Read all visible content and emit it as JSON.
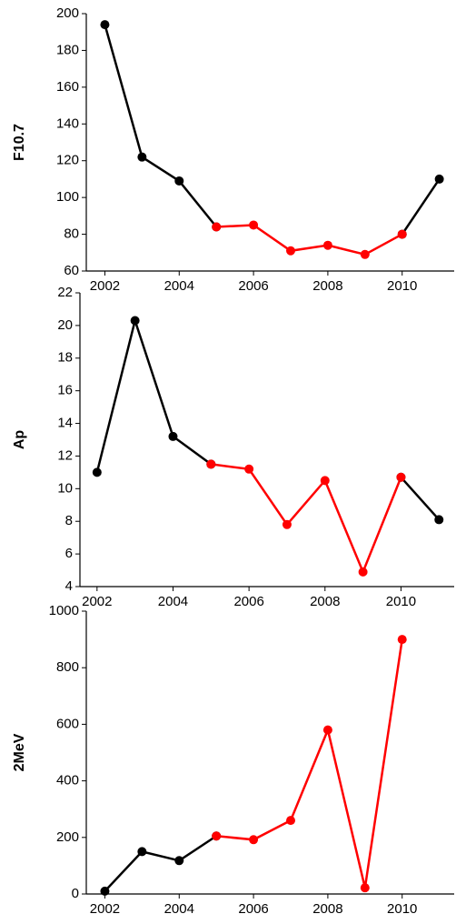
{
  "chart_data": [
    {
      "type": "line",
      "y_label": "F10.7",
      "x": [
        2002,
        2003,
        2004,
        2005,
        2006,
        2007,
        2008,
        2009,
        2010,
        2011
      ],
      "xlim": [
        2001.5,
        2011.4
      ],
      "xticks": [
        2002,
        2004,
        2006,
        2008,
        2010
      ],
      "ylim": [
        60,
        200
      ],
      "yticks": [
        60,
        80,
        100,
        120,
        140,
        160,
        180,
        200
      ],
      "series": [
        {
          "color": "#000000",
          "values": [
            194,
            122,
            109,
            84,
            null,
            null,
            null,
            null,
            80,
            110
          ]
        },
        {
          "color": "#ff0000",
          "values": [
            null,
            null,
            null,
            84,
            85,
            71,
            74,
            69,
            80,
            null
          ]
        }
      ]
    },
    {
      "type": "line",
      "y_label": "Ap",
      "x": [
        2002,
        2003,
        2004,
        2005,
        2006,
        2007,
        2008,
        2009,
        2010,
        2011
      ],
      "xlim": [
        2001.55,
        2011.4
      ],
      "xticks": [
        2002,
        2004,
        2006,
        2008,
        2010
      ],
      "ylim": [
        4,
        22
      ],
      "yticks": [
        4,
        6,
        8,
        10,
        12,
        14,
        16,
        18,
        20,
        22
      ],
      "series": [
        {
          "color": "#000000",
          "values": [
            11,
            20.3,
            13.2,
            11.5,
            null,
            null,
            null,
            null,
            10.7,
            8.1
          ]
        },
        {
          "color": "#ff0000",
          "values": [
            null,
            null,
            null,
            11.5,
            11.2,
            7.8,
            10.5,
            4.9,
            10.7,
            null
          ]
        }
      ]
    },
    {
      "type": "line",
      "y_label": "2MeV",
      "x": [
        2002,
        2003,
        2004,
        2005,
        2006,
        2007,
        2008,
        2009,
        2010
      ],
      "xlim": [
        2001.5,
        2011.4
      ],
      "xticks": [
        2002,
        2004,
        2006,
        2008,
        2010
      ],
      "ylim": [
        0,
        1000
      ],
      "yticks": [
        0,
        200,
        400,
        600,
        800,
        1000
      ],
      "series": [
        {
          "color": "#000000",
          "values": [
            10,
            150,
            118,
            205,
            null,
            null,
            null,
            null,
            null
          ]
        },
        {
          "color": "#ff0000",
          "values": [
            null,
            null,
            null,
            205,
            192,
            260,
            580,
            22,
            900
          ]
        }
      ]
    }
  ]
}
